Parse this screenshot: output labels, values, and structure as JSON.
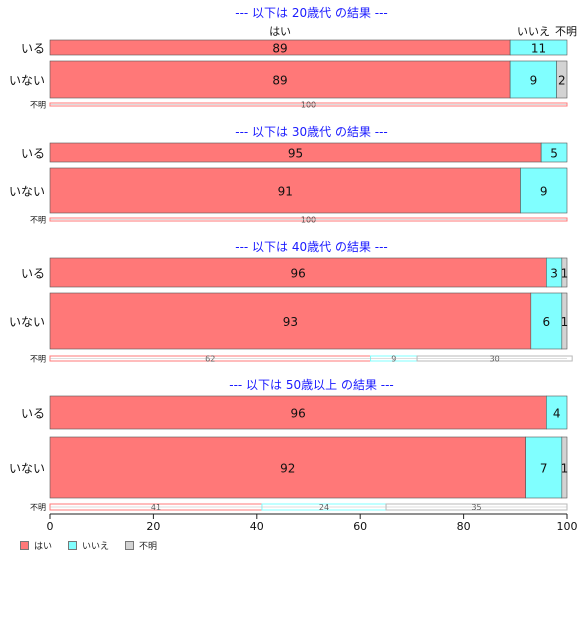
{
  "chart_data": {
    "type": "bar",
    "orientation": "horizontal",
    "stacked": "percent",
    "xlim": [
      0,
      100
    ],
    "x_ticks": [
      0,
      20,
      40,
      60,
      80,
      100
    ],
    "series_names": [
      "はい",
      "いいえ",
      "不明"
    ],
    "colors": [
      "#ff7878",
      "#80ffff",
      "#d3d3d3"
    ],
    "legend_position": "bottom-left",
    "panels": [
      {
        "title": "--- 以下は 20歳代 の結果 ---",
        "top_labels": [
          "はい",
          "いいえ",
          "不明"
        ],
        "rows": [
          {
            "category": "いる",
            "values": [
              89,
              11,
              0
            ],
            "labels": [
              "89",
              "11",
              ""
            ]
          },
          {
            "category": "いない",
            "values": [
              89,
              9,
              2
            ],
            "labels": [
              "89",
              "9",
              "2"
            ]
          },
          {
            "category": "不明",
            "values": [
              100,
              0,
              0
            ],
            "labels": [
              "100",
              "",
              ""
            ]
          }
        ]
      },
      {
        "title": "--- 以下は 30歳代 の結果 ---",
        "top_labels": [],
        "rows": [
          {
            "category": "いる",
            "values": [
              95,
              5,
              0
            ],
            "labels": [
              "95",
              "5",
              ""
            ]
          },
          {
            "category": "いない",
            "values": [
              91,
              9,
              0
            ],
            "labels": [
              "91",
              "9",
              ""
            ]
          },
          {
            "category": "不明",
            "values": [
              100,
              0,
              0
            ],
            "labels": [
              "100",
              "",
              ""
            ]
          }
        ]
      },
      {
        "title": "--- 以下は 40歳代 の結果 ---",
        "top_labels": [],
        "rows": [
          {
            "category": "いる",
            "values": [
              96,
              3,
              1
            ],
            "labels": [
              "96",
              "3",
              "1"
            ]
          },
          {
            "category": "いない",
            "values": [
              93,
              6,
              1
            ],
            "labels": [
              "93",
              "6",
              "1"
            ]
          },
          {
            "category": "不明",
            "values": [
              62,
              9,
              30
            ],
            "labels": [
              "62",
              "9",
              "30"
            ]
          }
        ]
      },
      {
        "title": "--- 以下は 50歳以上 の結果 ---",
        "top_labels": [],
        "rows": [
          {
            "category": "いる",
            "values": [
              96,
              4,
              0
            ],
            "labels": [
              "96",
              "4",
              ""
            ]
          },
          {
            "category": "いない",
            "values": [
              92,
              7,
              1
            ],
            "labels": [
              "92",
              "7",
              "1"
            ]
          },
          {
            "category": "不明",
            "values": [
              41,
              24,
              35
            ],
            "labels": [
              "41",
              "24",
              "35"
            ]
          }
        ]
      }
    ]
  }
}
